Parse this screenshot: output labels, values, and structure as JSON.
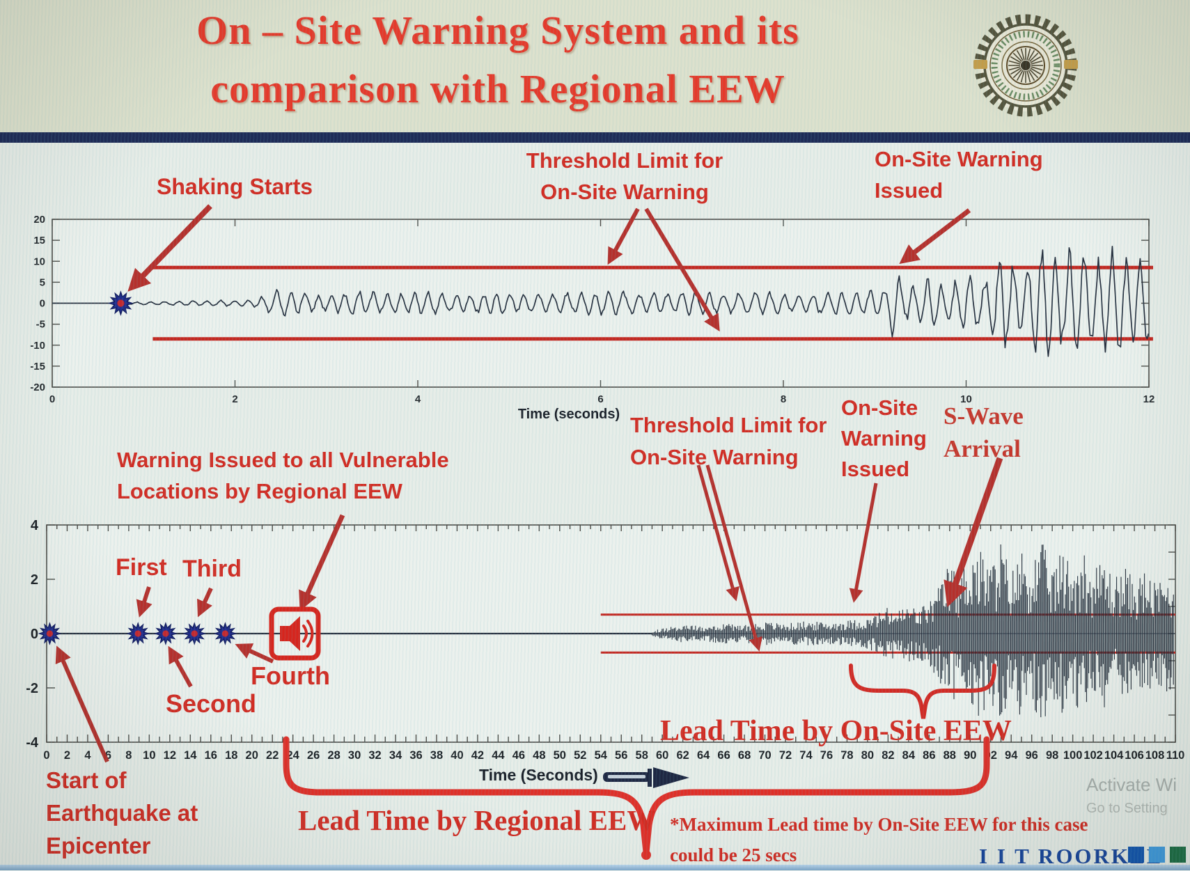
{
  "slide": {
    "title_line1": "On – Site Warning System and its",
    "title_line2": "comparison with Regional EEW",
    "logo": "iit-roorkee-emblem"
  },
  "axis_labels": {
    "top_chart_xlabel": "Time (seconds)",
    "bottom_chart_xlabel": "Time (Seconds)"
  },
  "annotations": {
    "shaking_starts": "Shaking Starts",
    "threshold_top_line1": "Threshold Limit for",
    "threshold_top_line2": "On-Site Warning",
    "onsite_warning_top_line1": "On-Site Warning",
    "onsite_warning_top_line2": "Issued",
    "warning_vulnerable_line1": "Warning Issued to all Vulnerable",
    "warning_vulnerable_line2": "Locations by Regional EEW",
    "first": "First",
    "second": "Second",
    "third": "Third",
    "fourth": "Fourth",
    "threshold_bottom_line1": "Threshold Limit for",
    "threshold_bottom_line2": "On-Site Warning",
    "onsite_warning_bottom_line1": "On-Site",
    "onsite_warning_bottom_line2": "Warning",
    "onsite_warning_bottom_line3": "Issued",
    "swave_line1": "S-Wave",
    "swave_line2": "Arrival",
    "lead_time_onsite": "Lead Time by On-Site EEW",
    "lead_time_regional": "Lead Time by Regional EEW",
    "start_epicenter_line1": "Start of",
    "start_epicenter_line2": "Earthquake at",
    "start_epicenter_line3": "Epicenter",
    "max_lead_note_line1": "*Maximum Lead time by On-Site EEW for this case",
    "max_lead_note_line2": "could be 25 secs"
  },
  "footer": {
    "brand": "I I T ROORKEE"
  },
  "watermark": {
    "line1": "Activate Wi",
    "line2": "Go to Setting"
  },
  "colors": {
    "title_red": "#e5392a",
    "annotation_red": "#d22b22",
    "arrow_red": "#b5302c",
    "threshold_red": "#c42720",
    "navy_bar": "#1e2b57",
    "waveform": "#27303f",
    "marker_blue": "#202c8c",
    "brand_navy": "#18459c",
    "brand_squares": [
      "#1256b0",
      "#3f9be0",
      "#1c6e46"
    ]
  },
  "chart_data": [
    {
      "type": "line",
      "name": "on-site accelerogram",
      "xlabel": "Time (seconds)",
      "xlim": [
        0,
        12
      ],
      "ylim": [
        -20,
        20
      ],
      "xticks": [
        0,
        2,
        4,
        6,
        8,
        10,
        12
      ],
      "yticks": [
        20,
        15,
        10,
        5,
        0,
        -5,
        -10,
        -15,
        -20
      ],
      "grid": false,
      "threshold": {
        "value": 8.5,
        "start_time": 1.1,
        "color": "#c42720",
        "label": "Threshold Limit for On-Site Warning"
      },
      "p_wave_marker": {
        "time": 0.75,
        "value": 0,
        "label": "Shaking Starts"
      },
      "onsite_warning_issued_time": 9.2,
      "amplitude_envelope": [
        [
          0.75,
          0.25
        ],
        [
          1.2,
          0.5
        ],
        [
          1.8,
          0.8
        ],
        [
          2.2,
          0.9
        ],
        [
          2.45,
          3.8
        ],
        [
          2.7,
          3.2
        ],
        [
          3.0,
          2.0
        ],
        [
          3.3,
          3.5
        ],
        [
          3.7,
          2.4
        ],
        [
          4.1,
          3.0
        ],
        [
          4.5,
          2.2
        ],
        [
          4.9,
          3.1
        ],
        [
          5.3,
          2.3
        ],
        [
          5.7,
          2.9
        ],
        [
          6.1,
          3.3
        ],
        [
          6.5,
          2.5
        ],
        [
          6.9,
          3.0
        ],
        [
          7.3,
          2.6
        ],
        [
          7.7,
          3.2
        ],
        [
          8.1,
          2.4
        ],
        [
          8.5,
          3.0
        ],
        [
          8.9,
          3.3
        ],
        [
          9.1,
          4.0
        ],
        [
          9.2,
          8.8
        ],
        [
          9.35,
          4.5
        ],
        [
          9.6,
          6.5
        ],
        [
          9.8,
          5.0
        ],
        [
          10.0,
          8.5
        ],
        [
          10.2,
          6.0
        ],
        [
          10.4,
          13.5
        ],
        [
          10.6,
          9.0
        ],
        [
          10.8,
          17.0
        ],
        [
          11.0,
          11.0
        ],
        [
          11.2,
          16.0
        ],
        [
          11.4,
          10.0
        ],
        [
          11.6,
          15.0
        ],
        [
          11.8,
          11.0
        ],
        [
          12.0,
          13.0
        ]
      ]
    },
    {
      "type": "line",
      "name": "seismogram at vulnerable site far from epicenter",
      "xlabel": "Time (Seconds)",
      "xlim": [
        0,
        110
      ],
      "ylim": [
        -4,
        4
      ],
      "xticks": [
        0,
        2,
        4,
        6,
        8,
        10,
        12,
        14,
        16,
        18,
        20,
        22,
        24,
        26,
        28,
        30,
        32,
        34,
        36,
        38,
        40,
        42,
        44,
        46,
        48,
        50,
        52,
        54,
        56,
        58,
        60,
        62,
        64,
        66,
        68,
        70,
        72,
        74,
        76,
        78,
        80,
        82,
        84,
        86,
        88,
        90,
        92,
        94,
        96,
        98,
        100,
        102,
        104,
        106,
        108,
        110
      ],
      "yticks": [
        4,
        2,
        0,
        -2,
        -4
      ],
      "grid": false,
      "threshold": {
        "value": 0.7,
        "start_time": 54,
        "color": "#c42720",
        "label": "Threshold Limit for On-Site Warning"
      },
      "report_markers": {
        "times": [
          0.3,
          8.9,
          11.6,
          14.4,
          17.4
        ],
        "labels": [
          "Start of Earthquake at Epicenter",
          "First",
          "Second",
          "Third",
          "Fourth"
        ]
      },
      "regional_warning_time": 24,
      "p_wave_arrival_time": 59,
      "onsite_warning_issued_time": 80,
      "s_wave_arrival_time": 88,
      "lead_time_regional_span": [
        24,
        92
      ],
      "lead_time_onsite_span": [
        78.5,
        92.5
      ],
      "max_onsite_lead_time": "could be 25 secs",
      "amplitude_envelope": [
        [
          59,
          0.08
        ],
        [
          60,
          0.2
        ],
        [
          62,
          0.32
        ],
        [
          64,
          0.28
        ],
        [
          66,
          0.38
        ],
        [
          68,
          0.33
        ],
        [
          70,
          0.42
        ],
        [
          72,
          0.36
        ],
        [
          74,
          0.45
        ],
        [
          76,
          0.4
        ],
        [
          78,
          0.48
        ],
        [
          80,
          0.55
        ],
        [
          81,
          0.75
        ],
        [
          82,
          0.95
        ],
        [
          83,
          0.85
        ],
        [
          84,
          1.05
        ],
        [
          85,
          0.9
        ],
        [
          86,
          1.2
        ],
        [
          87,
          1.7
        ],
        [
          88,
          2.6
        ],
        [
          89,
          2.1
        ],
        [
          90,
          3.3
        ],
        [
          91,
          3.0
        ],
        [
          92,
          2.5
        ],
        [
          93,
          3.4
        ],
        [
          94,
          2.2
        ],
        [
          95,
          3.1
        ],
        [
          96,
          2.7
        ],
        [
          97,
          3.3
        ],
        [
          98,
          2.4
        ],
        [
          99,
          3.0
        ],
        [
          100,
          2.6
        ],
        [
          101,
          3.1
        ],
        [
          102,
          2.2
        ],
        [
          103,
          2.8
        ],
        [
          104,
          2.0
        ],
        [
          105,
          2.5
        ],
        [
          106,
          1.9
        ],
        [
          107,
          2.3
        ],
        [
          108,
          1.8
        ],
        [
          109,
          2.1
        ],
        [
          110,
          1.9
        ]
      ]
    }
  ]
}
